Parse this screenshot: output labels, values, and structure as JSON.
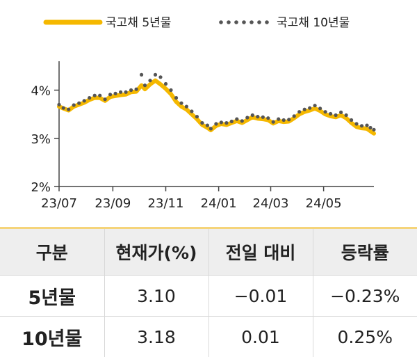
{
  "chart_data": {
    "type": "line",
    "title": "",
    "xlabel": "",
    "ylabel": "",
    "y_ticks": [
      "2%",
      "3%",
      "4%"
    ],
    "ylim": [
      2.0,
      4.6
    ],
    "x_ticks": [
      "23/07",
      "23/09",
      "23/11",
      "24/01",
      "24/03",
      "24/05"
    ],
    "x_tick_dates": [
      "2023-07-01",
      "2023-09-01",
      "2023-11-01",
      "2024-01-01",
      "2024-03-01",
      "2024-05-01"
    ],
    "x_range": [
      "2023-07-01",
      "2024-06-28"
    ],
    "legend_position": "top",
    "series": [
      {
        "name": "국고채 5년물",
        "style": "line",
        "color": "#f5b800",
        "points": [
          [
            "2023-07-01",
            3.66
          ],
          [
            "2023-07-06",
            3.62
          ],
          [
            "2023-07-12",
            3.58
          ],
          [
            "2023-07-18",
            3.66
          ],
          [
            "2023-07-24",
            3.7
          ],
          [
            "2023-07-30",
            3.74
          ],
          [
            "2023-08-05",
            3.8
          ],
          [
            "2023-08-11",
            3.84
          ],
          [
            "2023-08-17",
            3.84
          ],
          [
            "2023-08-23",
            3.78
          ],
          [
            "2023-08-29",
            3.86
          ],
          [
            "2023-09-04",
            3.88
          ],
          [
            "2023-09-10",
            3.9
          ],
          [
            "2023-09-16",
            3.91
          ],
          [
            "2023-09-22",
            3.96
          ],
          [
            "2023-09-28",
            3.97
          ],
          [
            "2023-10-04",
            4.1
          ],
          [
            "2023-10-08",
            4.02
          ],
          [
            "2023-10-14",
            4.12
          ],
          [
            "2023-10-20",
            4.2
          ],
          [
            "2023-10-26",
            4.12
          ],
          [
            "2023-11-01",
            4.03
          ],
          [
            "2023-11-07",
            3.92
          ],
          [
            "2023-11-13",
            3.76
          ],
          [
            "2023-11-19",
            3.66
          ],
          [
            "2023-11-25",
            3.6
          ],
          [
            "2023-12-01",
            3.5
          ],
          [
            "2023-12-07",
            3.4
          ],
          [
            "2023-12-13",
            3.28
          ],
          [
            "2023-12-19",
            3.22
          ],
          [
            "2023-12-23",
            3.17
          ],
          [
            "2023-12-29",
            3.26
          ],
          [
            "2024-01-04",
            3.3
          ],
          [
            "2024-01-10",
            3.28
          ],
          [
            "2024-01-16",
            3.32
          ],
          [
            "2024-01-22",
            3.36
          ],
          [
            "2024-01-28",
            3.32
          ],
          [
            "2024-02-03",
            3.38
          ],
          [
            "2024-02-09",
            3.44
          ],
          [
            "2024-02-15",
            3.41
          ],
          [
            "2024-02-21",
            3.4
          ],
          [
            "2024-02-27",
            3.38
          ],
          [
            "2024-03-04",
            3.31
          ],
          [
            "2024-03-10",
            3.36
          ],
          [
            "2024-03-16",
            3.34
          ],
          [
            "2024-03-22",
            3.35
          ],
          [
            "2024-03-28",
            3.42
          ],
          [
            "2024-04-03",
            3.5
          ],
          [
            "2024-04-09",
            3.55
          ],
          [
            "2024-04-15",
            3.58
          ],
          [
            "2024-04-21",
            3.62
          ],
          [
            "2024-04-27",
            3.57
          ],
          [
            "2024-05-03",
            3.5
          ],
          [
            "2024-05-09",
            3.46
          ],
          [
            "2024-05-15",
            3.44
          ],
          [
            "2024-05-21",
            3.48
          ],
          [
            "2024-05-27",
            3.42
          ],
          [
            "2024-06-02",
            3.32
          ],
          [
            "2024-06-08",
            3.24
          ],
          [
            "2024-06-14",
            3.21
          ],
          [
            "2024-06-20",
            3.2
          ],
          [
            "2024-06-24",
            3.15
          ],
          [
            "2024-06-28",
            3.1
          ]
        ]
      },
      {
        "name": "국고채 10년물",
        "style": "dotted",
        "color": "#555555",
        "points": [
          [
            "2023-07-01",
            3.7
          ],
          [
            "2023-07-06",
            3.63
          ],
          [
            "2023-07-12",
            3.6
          ],
          [
            "2023-07-18",
            3.69
          ],
          [
            "2023-07-24",
            3.73
          ],
          [
            "2023-07-30",
            3.78
          ],
          [
            "2023-08-05",
            3.84
          ],
          [
            "2023-08-11",
            3.89
          ],
          [
            "2023-08-17",
            3.89
          ],
          [
            "2023-08-23",
            3.81
          ],
          [
            "2023-08-29",
            3.91
          ],
          [
            "2023-09-04",
            3.93
          ],
          [
            "2023-09-10",
            3.96
          ],
          [
            "2023-09-16",
            3.96
          ],
          [
            "2023-09-22",
            4.0
          ],
          [
            "2023-09-28",
            4.02
          ],
          [
            "2023-10-04",
            4.32
          ],
          [
            "2023-10-08",
            4.1
          ],
          [
            "2023-10-14",
            4.2
          ],
          [
            "2023-10-20",
            4.32
          ],
          [
            "2023-10-26",
            4.27
          ],
          [
            "2023-11-01",
            4.13
          ],
          [
            "2023-11-07",
            4.0
          ],
          [
            "2023-11-13",
            3.84
          ],
          [
            "2023-11-19",
            3.73
          ],
          [
            "2023-11-25",
            3.66
          ],
          [
            "2023-12-01",
            3.56
          ],
          [
            "2023-12-07",
            3.45
          ],
          [
            "2023-12-13",
            3.32
          ],
          [
            "2023-12-19",
            3.27
          ],
          [
            "2023-12-23",
            3.2
          ],
          [
            "2023-12-29",
            3.3
          ],
          [
            "2024-01-04",
            3.33
          ],
          [
            "2024-01-10",
            3.32
          ],
          [
            "2024-01-16",
            3.35
          ],
          [
            "2024-01-22",
            3.4
          ],
          [
            "2024-01-28",
            3.36
          ],
          [
            "2024-02-03",
            3.43
          ],
          [
            "2024-02-09",
            3.48
          ],
          [
            "2024-02-15",
            3.45
          ],
          [
            "2024-02-21",
            3.44
          ],
          [
            "2024-02-27",
            3.42
          ],
          [
            "2024-03-04",
            3.34
          ],
          [
            "2024-03-10",
            3.4
          ],
          [
            "2024-03-16",
            3.38
          ],
          [
            "2024-03-22",
            3.39
          ],
          [
            "2024-03-28",
            3.46
          ],
          [
            "2024-04-03",
            3.55
          ],
          [
            "2024-04-09",
            3.6
          ],
          [
            "2024-04-15",
            3.63
          ],
          [
            "2024-04-21",
            3.68
          ],
          [
            "2024-04-27",
            3.62
          ],
          [
            "2024-05-03",
            3.55
          ],
          [
            "2024-05-09",
            3.51
          ],
          [
            "2024-05-15",
            3.48
          ],
          [
            "2024-05-21",
            3.54
          ],
          [
            "2024-05-27",
            3.48
          ],
          [
            "2024-06-02",
            3.38
          ],
          [
            "2024-06-08",
            3.3
          ],
          [
            "2024-06-14",
            3.26
          ],
          [
            "2024-06-20",
            3.27
          ],
          [
            "2024-06-24",
            3.22
          ],
          [
            "2024-06-28",
            3.18
          ]
        ]
      }
    ]
  },
  "table": {
    "headers": [
      "구분",
      "현재가(%)",
      "전일 대비",
      "등락률"
    ],
    "rows": [
      [
        "5년물",
        "3.10",
        "−0.01",
        "−0.23%"
      ],
      [
        "10년물",
        "3.18",
        "0.01",
        "0.25%"
      ]
    ],
    "header_bg": "#eeeeee",
    "accent_border": "#f5d47a"
  }
}
